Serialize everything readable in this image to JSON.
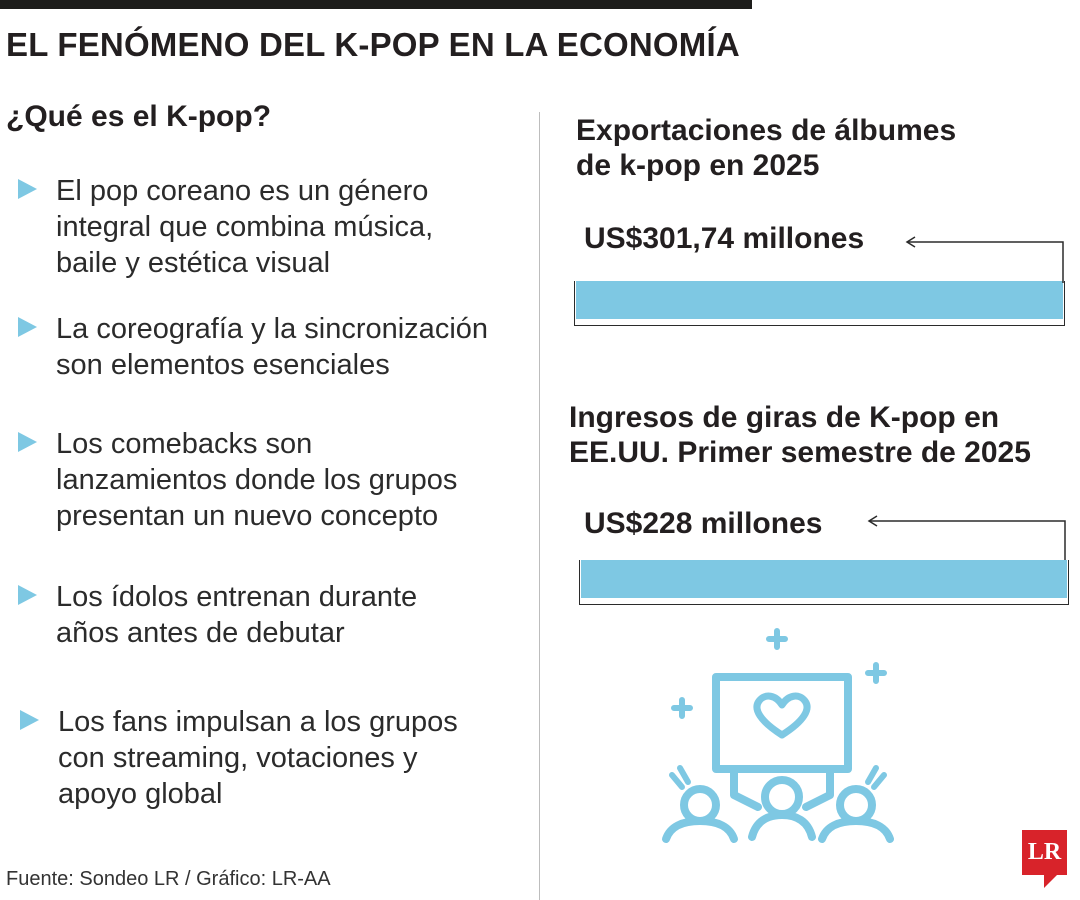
{
  "title": "EL FENÓMENO DEL K-POP EN LA ECONOMÍA",
  "left": {
    "heading": "¿Qué es el K-pop?",
    "bullets": [
      "El pop coreano es un género\nintegral que combina música,\nbaile y estética visual",
      "La coreografía y la sincronización\nson elementos esenciales",
      "Los comebacks son\nlanzamientos donde los grupos\npresentan un nuevo concepto",
      "Los ídolos entrenan durante\naños antes de debutar",
      "Los fans impulsan a los grupos\ncon streaming, votaciones y\napoyo global"
    ]
  },
  "stats": [
    {
      "title": "Exportaciones de álbumes\nde k-pop en 2025",
      "value": "US$301,74 millones"
    },
    {
      "title": "Ingresos de giras de K-pop en\nEE.UU. Primer semestre de 2025",
      "value": "US$228 millones"
    }
  ],
  "source": "Fuente: Sondeo LR / Gráfico: LR-AA",
  "logo": "LR",
  "colors": {
    "accent": "#7ec8e3",
    "brand": "#d8232a"
  },
  "icons": [
    "bullet-triangle-icon",
    "left-arrow-icon",
    "fans-with-heart-sign-icon"
  ]
}
